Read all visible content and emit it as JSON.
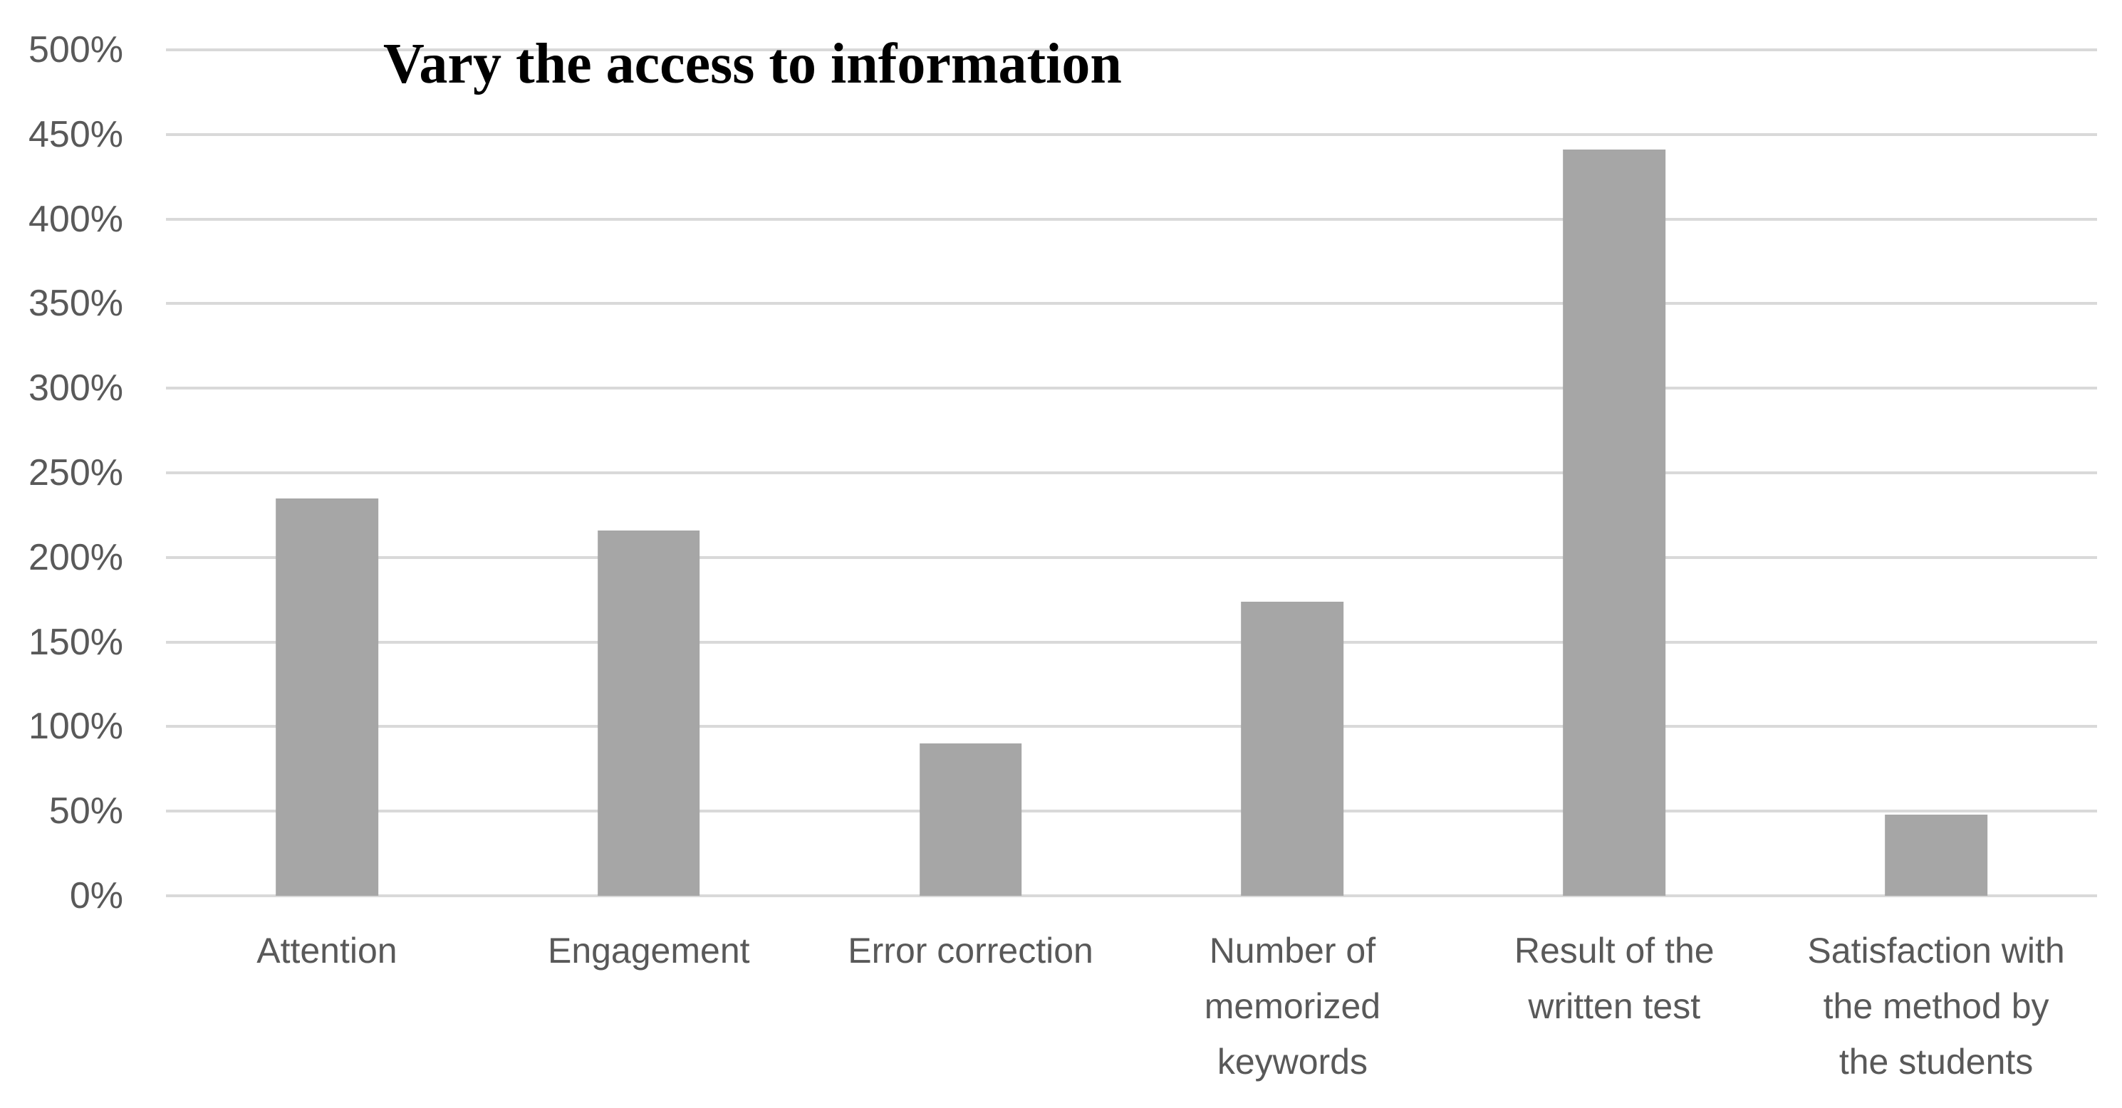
{
  "chart_data": {
    "type": "bar",
    "title": "Vary the access to information",
    "categories": [
      {
        "name": "Attention",
        "lines": [
          "Attention"
        ]
      },
      {
        "name": "Engagement",
        "lines": [
          "Engagement"
        ]
      },
      {
        "name": "Error correction",
        "lines": [
          "Error correction"
        ]
      },
      {
        "name": "Number of memorized keywords",
        "lines": [
          "Number of",
          "memorized",
          "keywords"
        ]
      },
      {
        "name": "Result of the written test",
        "lines": [
          "Result of the",
          "written test"
        ]
      },
      {
        "name": "Satisfaction with the method by the students",
        "lines": [
          "Satisfaction with",
          "the method by",
          "the students"
        ]
      }
    ],
    "values": [
      235,
      216,
      90,
      174,
      441,
      48
    ],
    "unit": "%",
    "xlabel": "",
    "ylabel": "",
    "ylim": [
      0,
      500
    ],
    "ytick_step": 50,
    "yticks": [
      {
        "value": 0,
        "label": "0%"
      },
      {
        "value": 50,
        "label": "50%"
      },
      {
        "value": 100,
        "label": "100%"
      },
      {
        "value": 150,
        "label": "150%"
      },
      {
        "value": 200,
        "label": "200%"
      },
      {
        "value": 250,
        "label": "250%"
      },
      {
        "value": 300,
        "label": "300%"
      },
      {
        "value": 350,
        "label": "350%"
      },
      {
        "value": 400,
        "label": "400%"
      },
      {
        "value": 450,
        "label": "450%"
      },
      {
        "value": 500,
        "label": "500%"
      }
    ],
    "grid": true,
    "legend": "none",
    "colors": {
      "bar": "#a6a6a6",
      "gridline": "#d9d9d9",
      "axis_labels": "#595959",
      "title": "#000000",
      "background": "#ffffff"
    }
  }
}
